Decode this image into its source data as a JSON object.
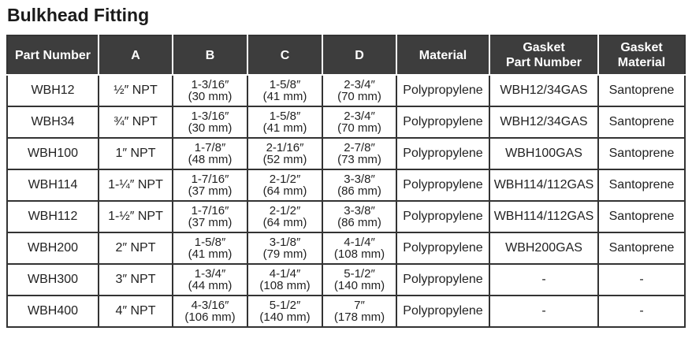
{
  "title": "Bulkhead Fitting",
  "table": {
    "header": [
      "Part Number",
      "A",
      "B",
      "C",
      "D",
      "Material",
      [
        "Gasket",
        "Part Number"
      ],
      [
        "Gasket",
        "Material"
      ]
    ],
    "rows": [
      [
        "WBH12",
        "½″ NPT",
        [
          "1-3/16″",
          "(30 mm)"
        ],
        [
          "1-5/8″",
          "(41 mm)"
        ],
        [
          "2-3/4″",
          "(70 mm)"
        ],
        "Polypropylene",
        "WBH12/34GAS",
        "Santoprene"
      ],
      [
        "WBH34",
        "¾″ NPT",
        [
          "1-3/16″",
          "(30 mm)"
        ],
        [
          "1-5/8″",
          "(41 mm)"
        ],
        [
          "2-3/4″",
          "(70 mm)"
        ],
        "Polypropylene",
        "WBH12/34GAS",
        "Santoprene"
      ],
      [
        "WBH100",
        "1″ NPT",
        [
          "1-7/8″",
          "(48 mm)"
        ],
        [
          "2-1/16″",
          "(52 mm)"
        ],
        [
          "2-7/8″",
          "(73 mm)"
        ],
        "Polypropylene",
        "WBH100GAS",
        "Santoprene"
      ],
      [
        "WBH114",
        "1-¼″ NPT",
        [
          "1-7/16″",
          "(37 mm)"
        ],
        [
          "2-1/2″",
          "(64 mm)"
        ],
        [
          "3-3/8″",
          "(86 mm)"
        ],
        "Polypropylene",
        "WBH114/112GAS",
        "Santoprene"
      ],
      [
        "WBH112",
        "1-½″ NPT",
        [
          "1-7/16″",
          "(37 mm)"
        ],
        [
          "2-1/2″",
          "(64 mm)"
        ],
        [
          "3-3/8″",
          "(86 mm)"
        ],
        "Polypropylene",
        "WBH114/112GAS",
        "Santoprene"
      ],
      [
        "WBH200",
        "2″ NPT",
        [
          "1-5/8″",
          "(41 mm)"
        ],
        [
          "3-1/8″",
          "(79 mm)"
        ],
        [
          "4-1/4″",
          "(108 mm)"
        ],
        "Polypropylene",
        "WBH200GAS",
        "Santoprene"
      ],
      [
        "WBH300",
        "3″ NPT",
        [
          "1-3/4″",
          "(44 mm)"
        ],
        [
          "4-1/4″",
          "(108 mm)"
        ],
        [
          "5-1/2″",
          "(140 mm)"
        ],
        "Polypropylene",
        "-",
        "-"
      ],
      [
        "WBH400",
        "4″ NPT",
        [
          "4-3/16″",
          "(106 mm)"
        ],
        [
          "5-1/2″",
          "(140 mm)"
        ],
        [
          "7″",
          "(178 mm)"
        ],
        "Polypropylene",
        "-",
        "-"
      ]
    ]
  }
}
